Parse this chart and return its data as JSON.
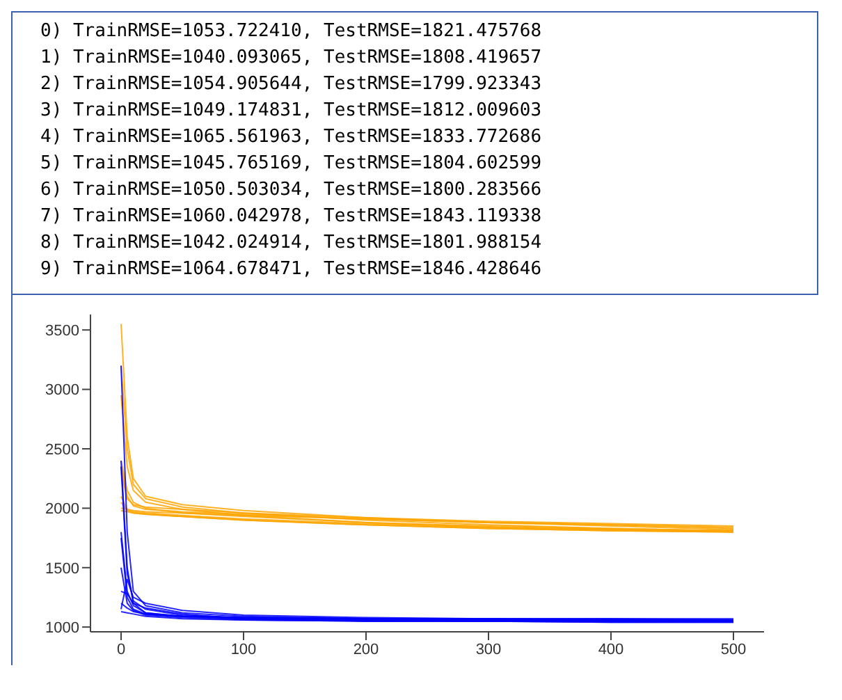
{
  "chart_data": {
    "type": "line",
    "annotations": [
      "0) TrainRMSE=1053.722410, TestRMSE=1821.475768",
      "1) TrainRMSE=1040.093065, TestRMSE=1808.419657",
      "2) TrainRMSE=1054.905644, TestRMSE=1799.923343",
      "3) TrainRMSE=1049.174831, TestRMSE=1812.009603",
      "4) TrainRMSE=1065.561963, TestRMSE=1833.772686",
      "5) TrainRMSE=1045.765169, TestRMSE=1804.602599",
      "6) TrainRMSE=1050.503034, TestRMSE=1800.283566",
      "7) TrainRMSE=1060.042978, TestRMSE=1843.119338",
      "8) TrainRMSE=1042.024914, TestRMSE=1801.988154",
      "9) TrainRMSE=1064.678471, TestRMSE=1846.428646"
    ],
    "x": [
      0,
      5,
      10,
      20,
      50,
      100,
      200,
      300,
      400,
      500
    ],
    "xlim": [
      -25,
      525
    ],
    "xticks": [
      0,
      100,
      200,
      300,
      400,
      500
    ],
    "ylim": [
      960,
      3630
    ],
    "yticks": [
      1000,
      1500,
      2000,
      2500,
      3000,
      3500
    ],
    "grid": false,
    "marker": "none",
    "line_style": "solid",
    "series": [
      {
        "color": "#ffa500",
        "values": [
          3550,
          2600,
          2250,
          2100,
          2030,
          1980,
          1920,
          1880,
          1850,
          1820
        ]
      },
      {
        "color": "#ffa500",
        "values": [
          3200,
          2500,
          2200,
          2080,
          2010,
          1960,
          1900,
          1860,
          1830,
          1810
        ]
      },
      {
        "color": "#ffa500",
        "values": [
          2950,
          2350,
          2150,
          2050,
          1990,
          1940,
          1880,
          1840,
          1820,
          1800
        ]
      },
      {
        "color": "#ffa500",
        "values": [
          2400,
          2150,
          2050,
          2000,
          1960,
          1930,
          1880,
          1850,
          1830,
          1810
        ]
      },
      {
        "color": "#ffa500",
        "values": [
          2350,
          2100,
          2020,
          1990,
          1970,
          1950,
          1910,
          1880,
          1860,
          1830
        ]
      },
      {
        "color": "#ffa500",
        "values": [
          2100,
          1990,
          1970,
          1960,
          1940,
          1910,
          1870,
          1840,
          1820,
          1800
        ]
      },
      {
        "color": "#ffa500",
        "values": [
          2050,
          1980,
          1960,
          1950,
          1930,
          1900,
          1860,
          1830,
          1810,
          1800
        ]
      },
      {
        "color": "#ffa500",
        "values": [
          2000,
          1990,
          1980,
          1970,
          1960,
          1940,
          1910,
          1880,
          1860,
          1840
        ]
      },
      {
        "color": "#ffa500",
        "values": [
          1980,
          1970,
          1960,
          1950,
          1930,
          1900,
          1860,
          1830,
          1810,
          1800
        ]
      },
      {
        "color": "#ffa500",
        "values": [
          2300,
          2080,
          2030,
          2010,
          1990,
          1960,
          1920,
          1890,
          1870,
          1850
        ]
      },
      {
        "color": "#0000ff",
        "values": [
          3200,
          1800,
          1300,
          1180,
          1120,
          1090,
          1070,
          1060,
          1060,
          1050
        ]
      },
      {
        "color": "#0000ff",
        "values": [
          2400,
          1500,
          1200,
          1120,
          1090,
          1070,
          1050,
          1050,
          1040,
          1040
        ]
      },
      {
        "color": "#0000ff",
        "values": [
          2350,
          1450,
          1220,
          1150,
          1100,
          1080,
          1070,
          1060,
          1060,
          1050
        ]
      },
      {
        "color": "#0000ff",
        "values": [
          1800,
          1300,
          1180,
          1120,
          1090,
          1070,
          1060,
          1050,
          1050,
          1050
        ]
      },
      {
        "color": "#0000ff",
        "values": [
          1750,
          1250,
          1150,
          1110,
          1090,
          1080,
          1070,
          1070,
          1070,
          1070
        ]
      },
      {
        "color": "#0000ff",
        "values": [
          1500,
          1200,
          1140,
          1100,
          1080,
          1060,
          1050,
          1050,
          1050,
          1050
        ]
      },
      {
        "color": "#0000ff",
        "values": [
          1300,
          1280,
          1200,
          1160,
          1110,
          1070,
          1060,
          1050,
          1050,
          1050
        ]
      },
      {
        "color": "#0000ff",
        "values": [
          1150,
          1400,
          1250,
          1200,
          1140,
          1100,
          1080,
          1070,
          1060,
          1060
        ]
      },
      {
        "color": "#0000ff",
        "values": [
          1130,
          1120,
          1110,
          1090,
          1070,
          1060,
          1050,
          1050,
          1040,
          1040
        ]
      },
      {
        "color": "#0000ff",
        "values": [
          1200,
          1160,
          1130,
          1110,
          1090,
          1080,
          1070,
          1070,
          1070,
          1060
        ]
      }
    ]
  }
}
